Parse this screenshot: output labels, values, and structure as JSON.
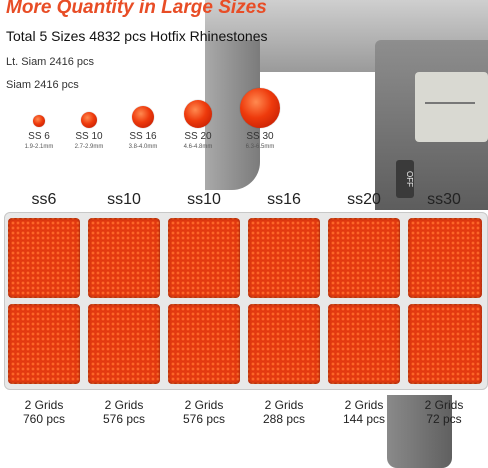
{
  "heading": "More Quantity in Large Sizes",
  "subheading": "Total 5 Sizes 4832 pcs Hotfix Rhinestones",
  "color_lines": [
    "Lt. Siam 2416 pcs",
    "Siam 2416 pcs"
  ],
  "caliper": {
    "readout": "OFF"
  },
  "samples": [
    {
      "label": "SS 6",
      "range": "1.9-2.1mm"
    },
    {
      "label": "SS 10",
      "range": "2.7-2.9mm"
    },
    {
      "label": "SS 16",
      "range": "3.8-4.0mm"
    },
    {
      "label": "SS 20",
      "range": "4.6-4.8mm"
    },
    {
      "label": "SS 30",
      "range": "6.3-6.5mm"
    }
  ],
  "compartments": [
    {
      "size_label": "ss6",
      "grids": "2 Grids",
      "count": "760 pcs"
    },
    {
      "size_label": "ss10",
      "grids": "2 Grids",
      "count": "576 pcs"
    },
    {
      "size_label": "ss10",
      "grids": "2 Grids",
      "count": "576 pcs"
    },
    {
      "size_label": "ss16",
      "grids": "2 Grids",
      "count": "288 pcs"
    },
    {
      "size_label": "ss20",
      "grids": "2 Grids",
      "count": "144 pcs"
    },
    {
      "size_label": "ss30",
      "grids": "2 Grids",
      "count": "72 pcs"
    }
  ],
  "colors": {
    "accent": "#e84d26",
    "stone": "#e03a10"
  }
}
